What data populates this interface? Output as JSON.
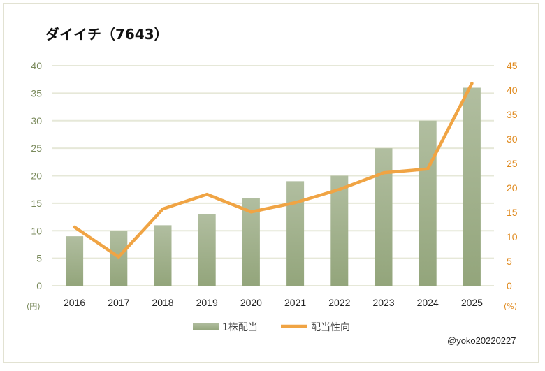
{
  "chart_data": {
    "type": "bar+line",
    "title": "ダイイチ（7643）",
    "categories": [
      "2016",
      "2017",
      "2018",
      "2019",
      "2020",
      "2021",
      "2022",
      "2023",
      "2024",
      "2025"
    ],
    "series": [
      {
        "name": "1株配当",
        "type": "bar",
        "axis": "left",
        "color": "#9cac84",
        "values": [
          9,
          10,
          11,
          13,
          16,
          19,
          20,
          25,
          30,
          36
        ]
      },
      {
        "name": "配当性向",
        "type": "line",
        "axis": "right",
        "color": "#f0a444",
        "values": [
          12.0,
          5.9,
          15.7,
          18.7,
          15.1,
          17.0,
          19.7,
          23.1,
          23.9,
          41.4
        ]
      }
    ],
    "y_left": {
      "label": "(円)",
      "ylim": [
        0,
        40
      ],
      "ticks": [
        0,
        5,
        10,
        15,
        20,
        25,
        30,
        35,
        40
      ],
      "color": "#7a8a5c"
    },
    "y_right": {
      "label": "(%)",
      "ylim": [
        0,
        45
      ],
      "ticks": [
        0,
        5,
        10,
        15,
        20,
        25,
        30,
        35,
        40,
        45
      ],
      "color": "#e08a1e"
    },
    "grid": true,
    "legend_position": "bottom"
  },
  "credit": "@yoko20220227"
}
